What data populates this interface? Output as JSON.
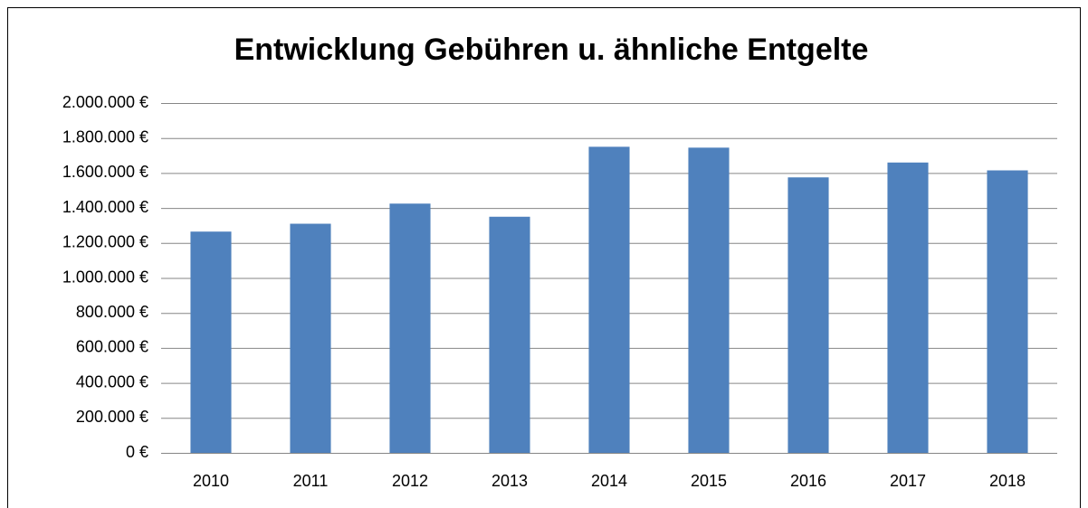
{
  "chart_data": {
    "type": "bar",
    "title": "Entwicklung Gebühren  u. ähnliche Entgelte",
    "categories": [
      "2010",
      "2011",
      "2012",
      "2013",
      "2014",
      "2015",
      "2016",
      "2017",
      "2018"
    ],
    "values": [
      1265000,
      1310000,
      1425000,
      1350000,
      1750000,
      1745000,
      1575000,
      1660000,
      1615000
    ],
    "color": "#4f81bd",
    "ylim": [
      0,
      2000000
    ],
    "yticks": [
      {
        "value": 0,
        "label": "0 €"
      },
      {
        "value": 200000,
        "label": "200.000 €"
      },
      {
        "value": 400000,
        "label": "400.000 €"
      },
      {
        "value": 600000,
        "label": "600.000 €"
      },
      {
        "value": 800000,
        "label": "800.000 €"
      },
      {
        "value": 1000000,
        "label": "1.000.000 €"
      },
      {
        "value": 1200000,
        "label": "1.200.000 €"
      },
      {
        "value": 1400000,
        "label": "1.400.000 €"
      },
      {
        "value": 1600000,
        "label": "1.600.000 €"
      },
      {
        "value": 1800000,
        "label": "1.800.000 €"
      },
      {
        "value": 2000000,
        "label": "2.000.000 €"
      }
    ],
    "grid": true
  }
}
